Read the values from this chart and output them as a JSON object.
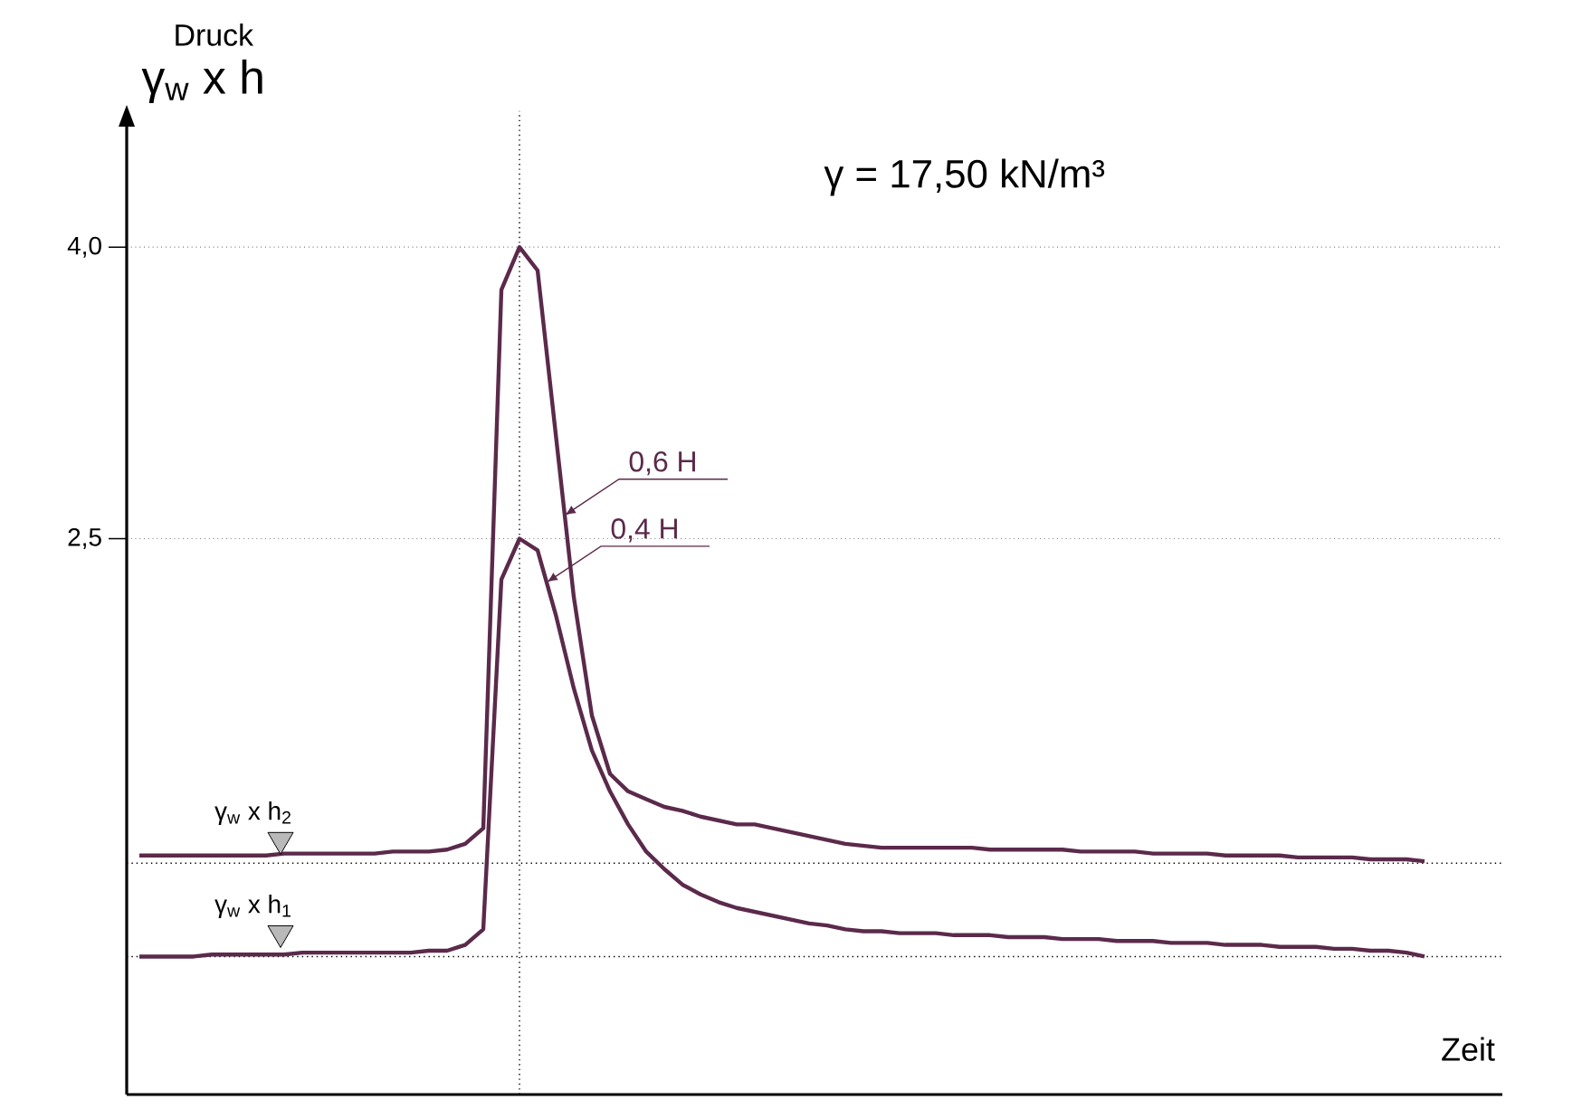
{
  "chart_data": {
    "type": "line",
    "categories": [
      null,
      null,
      null,
      null,
      null,
      null,
      null,
      null,
      null,
      null,
      null,
      null,
      null,
      null,
      null,
      null,
      null,
      null,
      null,
      null,
      null,
      null,
      null,
      null,
      null,
      null,
      null,
      null,
      null,
      null,
      null,
      null,
      null,
      null,
      null,
      null,
      null,
      null,
      null,
      null,
      null,
      null,
      null,
      null,
      null,
      null,
      null,
      null,
      null,
      null,
      null,
      null,
      null,
      null,
      null,
      null,
      null,
      null,
      null,
      null,
      null,
      null,
      null,
      null,
      null,
      null,
      null,
      null,
      null,
      null,
      null,
      null
    ],
    "series": [
      {
        "name": "0,6 H",
        "color": "#5b2a4b",
        "values": [
          0.87,
          0.87,
          0.87,
          0.87,
          0.87,
          0.87,
          0.87,
          0.87,
          0.88,
          0.88,
          0.88,
          0.88,
          0.88,
          0.88,
          0.89,
          0.89,
          0.89,
          0.9,
          0.93,
          1.01,
          3.78,
          4.0,
          3.88,
          3.04,
          2.2,
          1.59,
          1.29,
          1.2,
          1.16,
          1.12,
          1.1,
          1.07,
          1.05,
          1.03,
          1.03,
          1.01,
          0.99,
          0.97,
          0.95,
          0.93,
          0.92,
          0.91,
          0.91,
          0.91,
          0.91,
          0.91,
          0.91,
          0.9,
          0.9,
          0.9,
          0.9,
          0.9,
          0.89,
          0.89,
          0.89,
          0.89,
          0.88,
          0.88,
          0.88,
          0.88,
          0.87,
          0.87,
          0.87,
          0.87,
          0.86,
          0.86,
          0.86,
          0.86,
          0.85,
          0.85,
          0.85,
          0.84
        ]
      },
      {
        "name": "0,4 H",
        "color": "#5b2a4b",
        "values": [
          0.35,
          0.35,
          0.35,
          0.35,
          0.36,
          0.36,
          0.36,
          0.36,
          0.36,
          0.37,
          0.37,
          0.37,
          0.37,
          0.37,
          0.37,
          0.37,
          0.38,
          0.38,
          0.41,
          0.49,
          2.29,
          2.5,
          2.44,
          2.11,
          1.73,
          1.41,
          1.2,
          1.03,
          0.89,
          0.8,
          0.72,
          0.67,
          0.63,
          0.6,
          0.58,
          0.56,
          0.54,
          0.52,
          0.51,
          0.49,
          0.48,
          0.48,
          0.47,
          0.47,
          0.47,
          0.46,
          0.46,
          0.46,
          0.45,
          0.45,
          0.45,
          0.44,
          0.44,
          0.44,
          0.43,
          0.43,
          0.43,
          0.42,
          0.42,
          0.42,
          0.41,
          0.41,
          0.41,
          0.4,
          0.4,
          0.4,
          0.39,
          0.39,
          0.38,
          0.38,
          0.37,
          0.35
        ]
      }
    ],
    "ylim": [
      -0.36,
      4.62
    ],
    "yticks": [
      {
        "value": 4.0,
        "label": "4,0"
      },
      {
        "value": 2.5,
        "label": "2,5"
      }
    ],
    "ylabel": "Druck",
    "xlabel": "Zeit",
    "annotations": [
      "γ = 17,50 kN/m³",
      "γ$_{w}$ x h"
    ],
    "ref_lines": [
      {
        "axis": "y",
        "value": 0.83,
        "label": "γ$_{w}$ x h$_{2}$",
        "line_style": "dotted"
      },
      {
        "axis": "y",
        "value": 0.35,
        "label": "γ$_{w}$ x h$_{1}$",
        "line_style": "dotted"
      }
    ],
    "grid": "y",
    "tick_labels": "y",
    "line_style": "solid"
  }
}
